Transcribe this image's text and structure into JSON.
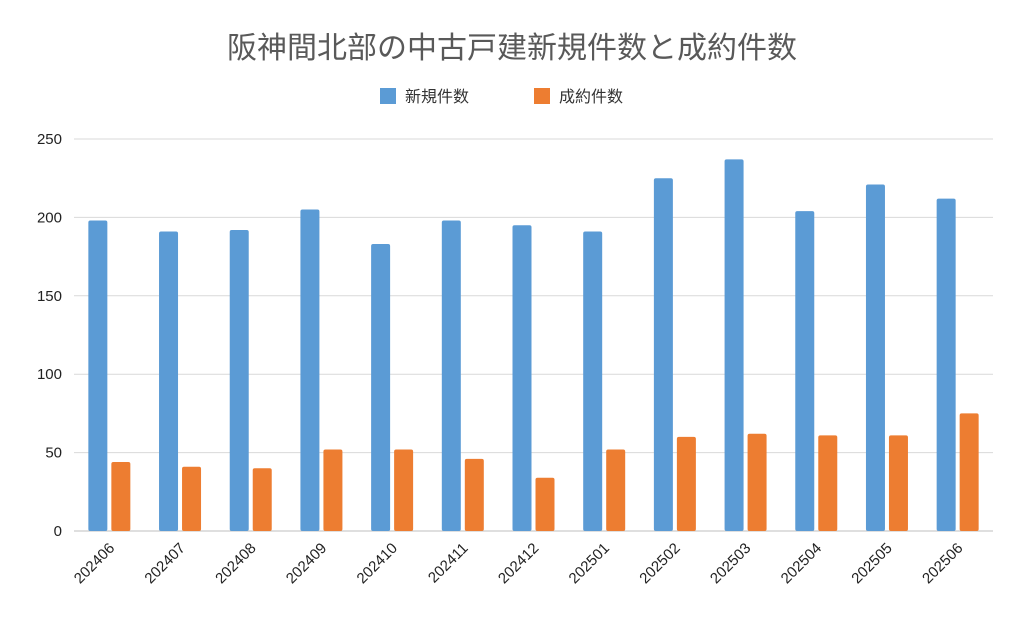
{
  "chart_data": {
    "type": "bar",
    "title": "阪神間北部の中古戸建新規件数と成約件数",
    "xlabel": "",
    "ylabel": "",
    "categories": [
      "202406",
      "202407",
      "202408",
      "202409",
      "202410",
      "202411",
      "202412",
      "202501",
      "202502",
      "202503",
      "202504",
      "202505",
      "202506"
    ],
    "series": [
      {
        "name": "新規件数",
        "color": "#5b9bd5",
        "values": [
          198,
          191,
          192,
          205,
          183,
          198,
          195,
          191,
          225,
          237,
          204,
          221,
          212
        ]
      },
      {
        "name": "成約件数",
        "color": "#ed7d31",
        "values": [
          44,
          41,
          40,
          52,
          52,
          46,
          34,
          52,
          60,
          62,
          61,
          61,
          75
        ]
      }
    ],
    "ylim": [
      0,
      250
    ],
    "yticks": [
      0,
      50,
      100,
      150,
      200,
      250
    ],
    "grid": true,
    "legend_position": "top-center"
  }
}
